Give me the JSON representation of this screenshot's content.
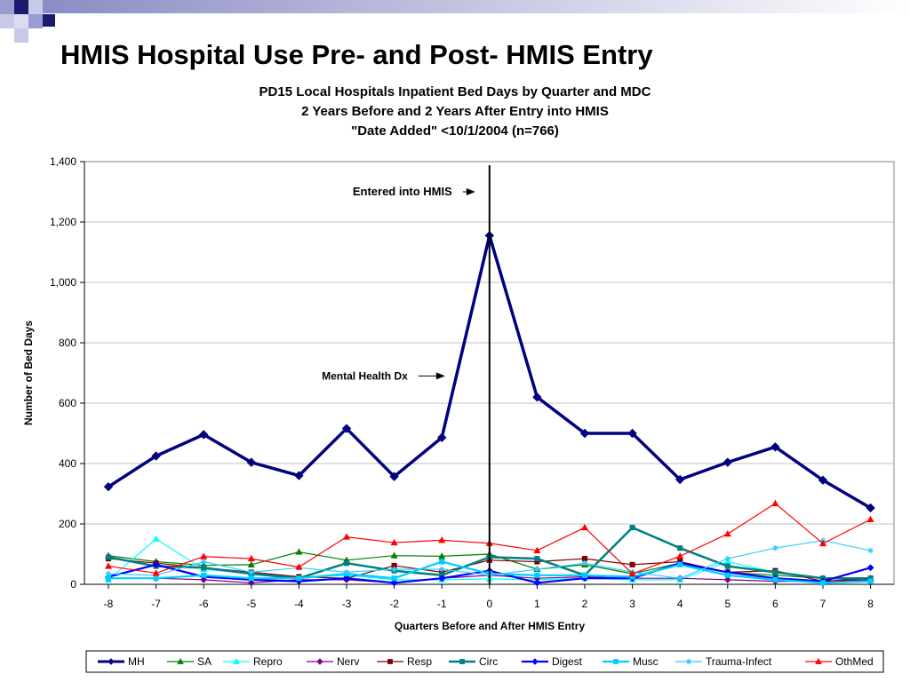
{
  "slide": {
    "title": "HMIS Hospital Use Pre- and Post- HMIS Entry"
  },
  "chart_data": {
    "type": "line",
    "title_lines": [
      "PD15 Local Hospitals Inpatient Bed Days by Quarter and MDC",
      "2 Years Before and 2 Years After Entry into HMIS",
      "\"Date Added\" <10/1/2004 (n=766)"
    ],
    "xlabel": "Quarters Before and After HMIS Entry",
    "ylabel": "Number of Bed Days",
    "x": [
      -8,
      -7,
      -6,
      -5,
      -4,
      -3,
      -2,
      -1,
      0,
      1,
      2,
      3,
      4,
      5,
      6,
      7,
      8
    ],
    "x_tick_labels": [
      "-8",
      "-7",
      "-6",
      "-5",
      "-4",
      "-3",
      "-2",
      "-1",
      "0",
      "1",
      "2",
      "3",
      "4",
      "5",
      "6",
      "7",
      "8"
    ],
    "ylim": [
      0,
      1400
    ],
    "y_ticks": [
      0,
      200,
      400,
      600,
      800,
      1000,
      1200,
      1400
    ],
    "y_tick_labels": [
      "0",
      "200",
      "400",
      "600",
      "800",
      "1,000",
      "1,200",
      "1,400"
    ],
    "grid": "horizontal",
    "legend_position": "bottom",
    "vertical_marker_x": 0,
    "annotations": [
      {
        "text": "Entered into HMIS",
        "x": 0,
        "y": 1300
      },
      {
        "text": "Mental Health Dx",
        "x": 0,
        "y": 690
      }
    ],
    "series": [
      {
        "name": "MH",
        "color": "#000080",
        "marker": "diamond",
        "width": 3.5,
        "values": [
          323,
          425,
          496,
          404,
          360,
          516,
          357,
          486,
          1155,
          620,
          500,
          500,
          347,
          404,
          455,
          345,
          253
        ]
      },
      {
        "name": "SA",
        "color": "#008000",
        "marker": "triangle",
        "width": 1.2,
        "values": [
          95,
          75,
          63,
          65,
          107,
          80,
          95,
          93,
          100,
          50,
          65,
          35,
          70,
          40,
          30,
          20,
          20
        ]
      },
      {
        "name": "Repro",
        "color": "#00FFFF",
        "marker": "triangle",
        "width": 1.2,
        "values": [
          15,
          150,
          50,
          35,
          20,
          30,
          15,
          15,
          18,
          15,
          20,
          15,
          15,
          75,
          40,
          20,
          15
        ]
      },
      {
        "name": "Nerv",
        "color": "#800080",
        "marker": "diamond",
        "width": 1.2,
        "values": [
          20,
          20,
          15,
          5,
          15,
          15,
          5,
          20,
          30,
          20,
          25,
          20,
          20,
          15,
          10,
          10,
          15
        ]
      },
      {
        "name": "Resp",
        "color": "#800000",
        "marker": "square",
        "width": 1.2,
        "values": [
          85,
          70,
          55,
          40,
          25,
          20,
          62,
          40,
          80,
          75,
          85,
          65,
          75,
          40,
          45,
          10,
          20
        ]
      },
      {
        "name": "Circ",
        "color": "#008080",
        "marker": "square",
        "width": 2.5,
        "values": [
          90,
          60,
          55,
          35,
          20,
          70,
          45,
          30,
          90,
          85,
          30,
          188,
          120,
          60,
          40,
          20,
          20
        ]
      },
      {
        "name": "Digest",
        "color": "#0000FF",
        "marker": "diamond",
        "width": 2.2,
        "values": [
          25,
          65,
          25,
          15,
          10,
          20,
          5,
          20,
          45,
          5,
          20,
          20,
          70,
          40,
          20,
          10,
          55
        ]
      },
      {
        "name": "Musc",
        "color": "#00CCFF",
        "marker": "square",
        "width": 2.2,
        "values": [
          20,
          20,
          30,
          20,
          20,
          35,
          20,
          75,
          35,
          30,
          30,
          25,
          65,
          30,
          15,
          5,
          10
        ]
      },
      {
        "name": "Trauma-Infect",
        "color": "#33CCFF",
        "marker": "asterisk",
        "width": 1.2,
        "values": [
          35,
          30,
          75,
          40,
          55,
          40,
          50,
          50,
          30,
          50,
          70,
          40,
          20,
          85,
          120,
          145,
          112
        ]
      },
      {
        "name": "OthMed",
        "color": "#FF0000",
        "marker": "triangle",
        "width": 1.2,
        "values": [
          60,
          37,
          92,
          85,
          57,
          157,
          138,
          146,
          136,
          112,
          188,
          35,
          93,
          167,
          268,
          135,
          215
        ]
      }
    ]
  }
}
